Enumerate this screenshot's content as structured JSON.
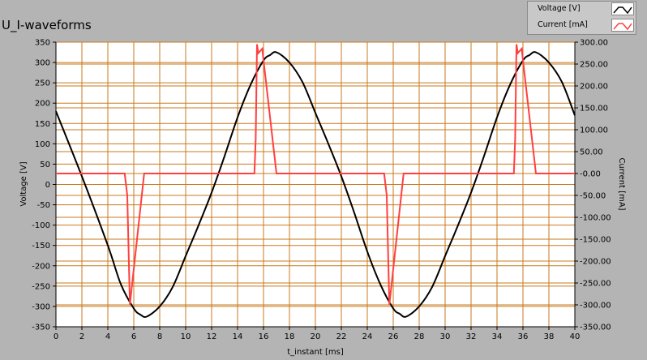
{
  "window": {
    "title": "U_I-waveforms"
  },
  "legend": {
    "items": [
      {
        "label": "Voltage [V]",
        "color": "#000000"
      },
      {
        "label": "Current [mA]",
        "color": "#ff4040"
      }
    ]
  },
  "chart_data": {
    "type": "line",
    "title": "U_I-waveforms",
    "xlabel": "t_instant [ms]",
    "ylabel": "Voltage [V]",
    "y2label": "Current [mA]",
    "xlim": [
      0,
      40
    ],
    "ylim": [
      -350,
      350
    ],
    "y2lim": [
      -350,
      300
    ],
    "xticks": [
      "0",
      "2",
      "4",
      "6",
      "8",
      "10",
      "12",
      "14",
      "16",
      "18",
      "20",
      "22",
      "24",
      "26",
      "28",
      "30",
      "32",
      "34",
      "36",
      "38",
      "40"
    ],
    "yticks": [
      "350",
      "300",
      "250",
      "200",
      "150",
      "100",
      "50",
      "0",
      "-50",
      "-100",
      "-150",
      "-200",
      "-250",
      "-300",
      "-350"
    ],
    "y2ticks": [
      "300.00",
      "250.00",
      "200.00",
      "150.00",
      "100.00",
      "50.00",
      "-0.00",
      "-50.00",
      "-100.00",
      "-150.00",
      "-200.00",
      "-250.00",
      "-300.00",
      "-350.00"
    ],
    "grid": true,
    "legend_position": "top-right",
    "series": [
      {
        "name": "Voltage [V]",
        "axis": "left",
        "color": "#000000",
        "x": [
          0,
          2,
          4,
          5,
          6,
          6.5,
          7,
          8,
          9,
          10,
          11,
          12,
          13,
          14,
          15,
          16,
          16.5,
          17,
          18,
          19,
          20,
          21,
          22,
          23,
          24,
          25,
          26,
          26.5,
          27,
          28,
          29,
          30,
          31,
          32,
          33,
          34,
          35,
          36,
          36.5,
          37,
          38,
          39,
          40
        ],
        "y": [
          180,
          20,
          -150,
          -245,
          -305,
          -320,
          -325,
          -300,
          -252,
          -176,
          -100,
          -20,
          70,
          165,
          245,
          305,
          318,
          325,
          300,
          252,
          176,
          100,
          20,
          -70,
          -165,
          -245,
          -305,
          -318,
          -325,
          -300,
          -252,
          -176,
          -100,
          -20,
          70,
          165,
          245,
          305,
          318,
          325,
          300,
          252,
          170
        ]
      },
      {
        "name": "Current [mA]",
        "axis": "right",
        "color": "#ff4040",
        "x": [
          0,
          5.3,
          5.5,
          5.7,
          6.8,
          7.2,
          15.3,
          15.4,
          15.5,
          15.6,
          15.9,
          17.0,
          17.2,
          25.3,
          25.5,
          25.7,
          26.8,
          27.2,
          35.3,
          35.4,
          35.5,
          35.6,
          35.9,
          37.0,
          37.2,
          40
        ],
        "y": [
          0,
          0,
          -50,
          -300,
          0,
          0,
          0,
          80,
          295,
          275,
          285,
          0,
          0,
          0,
          -50,
          -300,
          0,
          0,
          0,
          80,
          295,
          275,
          285,
          0,
          0,
          0
        ]
      }
    ]
  }
}
